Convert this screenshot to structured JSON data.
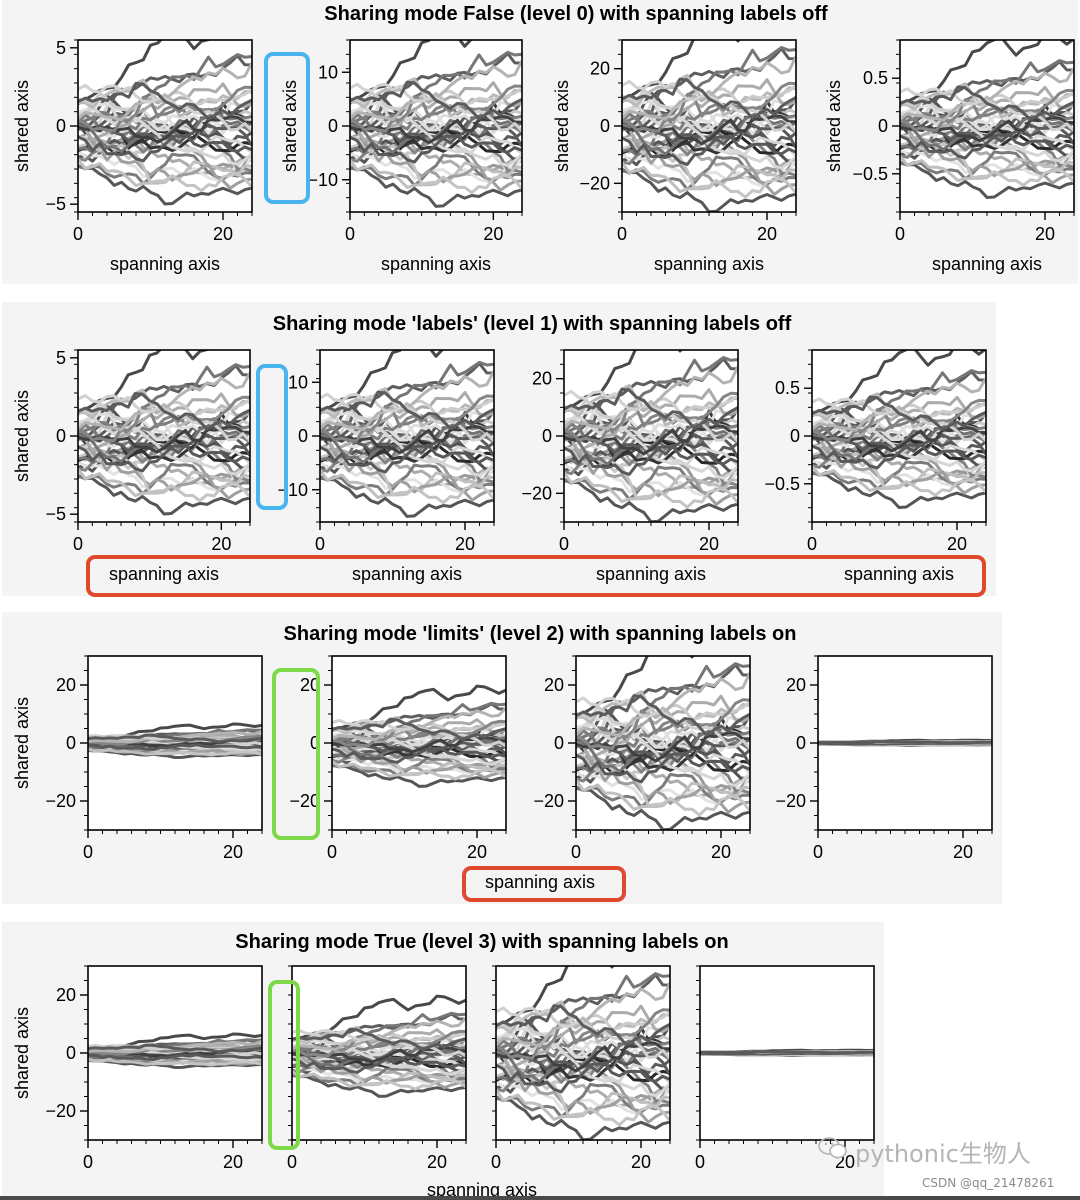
{
  "shared_label": "shared axis",
  "span_label": "spanning axis",
  "watermark": {
    "main": "pythonic生物人",
    "sub": "CSDN @qq_21478261"
  },
  "colors": {
    "background_panel": "#f4f4f4",
    "highlight_blue": "#4ab4f0",
    "highlight_red": "#e04a2c",
    "highlight_green": "#7ed94a",
    "axis": "#000000"
  },
  "figures": [
    {
      "title": "Sharing mode False (level 0) with spanning labels off",
      "highlights": [
        "blue y-label box between panels 1 and 2"
      ],
      "chart_data": [
        {
          "type": "line",
          "xlabel": "spanning axis",
          "ylabel": "shared axis",
          "xlim": [
            0,
            24
          ],
          "ylim": [
            -5.5,
            5.5
          ],
          "yticks": [
            "5",
            "0",
            "−5"
          ],
          "xticks": [
            "0",
            "20"
          ],
          "series_scale": 1.0,
          "n_series": 36
        },
        {
          "type": "line",
          "xlabel": "spanning axis",
          "ylabel": "shared axis",
          "xlim": [
            0,
            24
          ],
          "ylim": [
            -16,
            16
          ],
          "yticks": [
            "10",
            "0",
            "−10"
          ],
          "xticks": [
            "0",
            "20"
          ],
          "series_scale": 3.0,
          "n_series": 36
        },
        {
          "type": "line",
          "xlabel": "spanning axis",
          "ylabel": "shared axis",
          "xlim": [
            0,
            24
          ],
          "ylim": [
            -30,
            30
          ],
          "yticks": [
            "20",
            "0",
            "−20"
          ],
          "xticks": [
            "0",
            "20"
          ],
          "series_scale": 6.0,
          "n_series": 36
        },
        {
          "type": "line",
          "xlabel": "spanning axis",
          "ylabel": "shared axis",
          "xlim": [
            0,
            24
          ],
          "ylim": [
            -0.9,
            0.9
          ],
          "yticks": [
            "0.5",
            "0",
            "−0.5"
          ],
          "xticks": [
            "0",
            "20"
          ],
          "series_scale": 0.15,
          "n_series": 36
        }
      ]
    },
    {
      "title": "Sharing mode 'labels' (level 1) with spanning labels off",
      "highlights": [
        "blue empty y-label box",
        "red box around x-labels"
      ],
      "chart_data": [
        {
          "type": "line",
          "xlabel": "spanning axis",
          "ylabel": "shared axis",
          "xlim": [
            0,
            24
          ],
          "ylim": [
            -5.5,
            5.5
          ],
          "yticks": [
            "5",
            "0",
            "−5"
          ],
          "xticks": [
            "0",
            "20"
          ],
          "series_scale": 1.0
        },
        {
          "type": "line",
          "xlabel": "spanning axis",
          "ylabel": "",
          "xlim": [
            0,
            24
          ],
          "ylim": [
            -16,
            16
          ],
          "yticks": [
            "10",
            "0",
            "−10"
          ],
          "xticks": [
            "0",
            "20"
          ],
          "series_scale": 3.0
        },
        {
          "type": "line",
          "xlabel": "spanning axis",
          "ylabel": "",
          "xlim": [
            0,
            24
          ],
          "ylim": [
            -30,
            30
          ],
          "yticks": [
            "20",
            "0",
            "−20"
          ],
          "xticks": [
            "0",
            "20"
          ],
          "series_scale": 6.0
        },
        {
          "type": "line",
          "xlabel": "spanning axis",
          "ylabel": "",
          "xlim": [
            0,
            24
          ],
          "ylim": [
            -0.9,
            0.9
          ],
          "yticks": [
            "0.5",
            "0",
            "−0.5"
          ],
          "xticks": [
            "0",
            "20"
          ],
          "series_scale": 0.15
        }
      ]
    },
    {
      "title": "Sharing mode 'limits' (level 2) with spanning labels on",
      "highlights": [
        "green y-ticklabel box",
        "red box around single spanning x-label"
      ],
      "chart_data": [
        {
          "type": "line",
          "xlabel": "spanning axis",
          "ylabel": "shared axis",
          "xlim": [
            0,
            24
          ],
          "ylim": [
            -30,
            30
          ],
          "yticks": [
            "20",
            "0",
            "−20"
          ],
          "xticks": [
            "0",
            "20"
          ],
          "series_scale": 1.0
        },
        {
          "type": "line",
          "xlim": [
            0,
            24
          ],
          "ylim": [
            -30,
            30
          ],
          "yticks": [
            "20",
            "0",
            "−20"
          ],
          "xticks": [
            "0",
            "20"
          ],
          "series_scale": 3.0
        },
        {
          "type": "line",
          "xlim": [
            0,
            24
          ],
          "ylim": [
            -30,
            30
          ],
          "yticks": [
            "20",
            "0",
            "−20"
          ],
          "xticks": [
            "0",
            "20"
          ],
          "series_scale": 6.0
        },
        {
          "type": "line",
          "xlim": [
            0,
            24
          ],
          "ylim": [
            -30,
            30
          ],
          "yticks": [
            "20",
            "0",
            "−20"
          ],
          "xticks": [
            "0",
            "20"
          ],
          "series_scale": 0.15
        }
      ]
    },
    {
      "title": "Sharing mode True (level 3) with spanning labels on",
      "highlights": [
        "green empty y-tick box"
      ],
      "chart_data": [
        {
          "type": "line",
          "xlabel": "spanning axis",
          "ylabel": "shared axis",
          "xlim": [
            0,
            24
          ],
          "ylim": [
            -30,
            30
          ],
          "yticks": [
            "20",
            "0",
            "−20"
          ],
          "xticks": [
            "0",
            "20"
          ],
          "series_scale": 1.0
        },
        {
          "type": "line",
          "xlim": [
            0,
            24
          ],
          "ylim": [
            -30,
            30
          ],
          "yticks": [],
          "xticks": [
            "0",
            "20"
          ],
          "series_scale": 3.0
        },
        {
          "type": "line",
          "xlim": [
            0,
            24
          ],
          "ylim": [
            -30,
            30
          ],
          "yticks": [],
          "xticks": [
            "0",
            "20"
          ],
          "series_scale": 6.0
        },
        {
          "type": "line",
          "xlim": [
            0,
            24
          ],
          "ylim": [
            -30,
            30
          ],
          "yticks": [],
          "xticks": [
            "0",
            "20"
          ],
          "series_scale": 0.15
        }
      ]
    }
  ]
}
